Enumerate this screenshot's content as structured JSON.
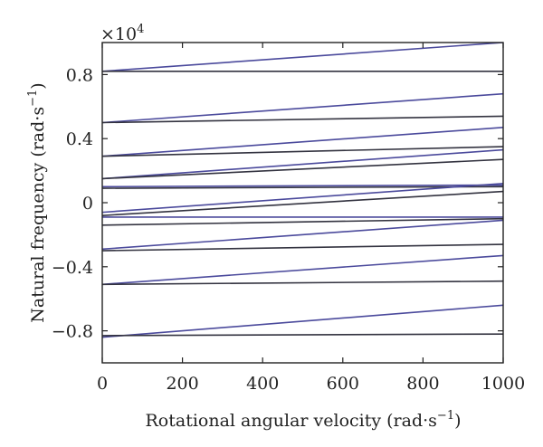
{
  "chart_data": {
    "type": "line",
    "title": "",
    "xlabel": "Rotational angular velocity (rad·s",
    "xlabel_sup": "−1",
    "xlabel_end": ")",
    "ylabel": "Natural frequency (rad·s",
    "ylabel_sup": "−1",
    "ylabel_end": ")",
    "y_multiplier_base": "×10",
    "y_multiplier_exp": "4",
    "xlim": [
      0,
      1000
    ],
    "ylim": [
      -1.0,
      1.0
    ],
    "y_scale_factor": 10000,
    "xticks": [
      0,
      200,
      400,
      600,
      800,
      1000
    ],
    "xtick_labels": [
      "0",
      "200",
      "400",
      "600",
      "800",
      "1000"
    ],
    "yticks": [
      -0.8,
      -0.4,
      0,
      0.4,
      0.8
    ],
    "ytick_labels": [
      "−0.8",
      "−0.4",
      "0",
      "0.4",
      "0.8"
    ],
    "grid": false,
    "legend": "none",
    "line_color_a": "#4b4a9c",
    "line_color_b": "#333340",
    "x": [
      0,
      1000
    ],
    "series": [
      {
        "values": [
          0.82,
          1.0
        ],
        "color": "#4b4a9c"
      },
      {
        "values": [
          0.82,
          0.82
        ],
        "color": "#333340"
      },
      {
        "values": [
          0.5,
          0.68
        ],
        "color": "#4b4a9c"
      },
      {
        "values": [
          0.5,
          0.54
        ],
        "color": "#333340"
      },
      {
        "values": [
          0.29,
          0.47
        ],
        "color": "#4b4a9c"
      },
      {
        "values": [
          0.29,
          0.35
        ],
        "color": "#333340"
      },
      {
        "values": [
          0.15,
          0.33
        ],
        "color": "#4b4a9c"
      },
      {
        "values": [
          0.15,
          0.27
        ],
        "color": "#333340"
      },
      {
        "values": [
          0.1,
          0.11
        ],
        "color": "#4b4a9c"
      },
      {
        "values": [
          0.09,
          0.1
        ],
        "color": "#333340"
      },
      {
        "values": [
          -0.06,
          0.12
        ],
        "color": "#4b4a9c"
      },
      {
        "values": [
          -0.08,
          0.07
        ],
        "color": "#333340"
      },
      {
        "values": [
          -0.09,
          -0.09
        ],
        "color": "#4b4a9c"
      },
      {
        "values": [
          -0.14,
          -0.1
        ],
        "color": "#333340"
      },
      {
        "values": [
          -0.29,
          -0.11
        ],
        "color": "#4b4a9c"
      },
      {
        "values": [
          -0.3,
          -0.26
        ],
        "color": "#333340"
      },
      {
        "values": [
          -0.51,
          -0.33
        ],
        "color": "#4b4a9c"
      },
      {
        "values": [
          -0.51,
          -0.49
        ],
        "color": "#333340"
      },
      {
        "values": [
          -0.84,
          -0.64
        ],
        "color": "#4b4a9c"
      },
      {
        "values": [
          -0.83,
          -0.82
        ],
        "color": "#333340"
      }
    ]
  }
}
